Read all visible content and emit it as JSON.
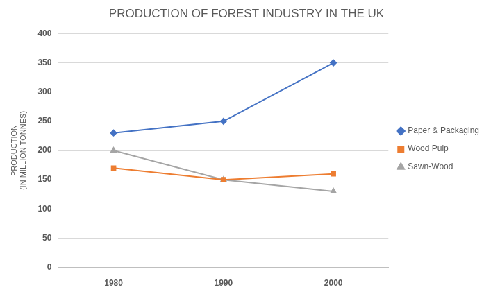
{
  "chart_data": {
    "type": "line",
    "title": "PRODUCTION OF FOREST INDUSTRY IN THE UK",
    "y_label": [
      "PRODUCTION",
      "(IN MILLION TONNES)"
    ],
    "categories": [
      "1980",
      "1990",
      "2000"
    ],
    "series": [
      {
        "name": "Paper & Packaging",
        "color": "#4472c4",
        "marker": "diamond",
        "line_style": "solid",
        "values": [
          230,
          250,
          350
        ]
      },
      {
        "name": "Wood Pulp",
        "color": "#ed7d31",
        "marker": "square",
        "line_style": "solid",
        "values": [
          170,
          150,
          160
        ]
      },
      {
        "name": "Sawn-Wood",
        "color": "#a5a5a5",
        "marker": "triangle",
        "line_style": "solid",
        "values": [
          200,
          150,
          130
        ]
      }
    ],
    "ylim": [
      0,
      400
    ],
    "yticks": [
      0,
      50,
      100,
      150,
      200,
      250,
      300,
      350,
      400
    ],
    "grid": true,
    "legend": "right"
  }
}
